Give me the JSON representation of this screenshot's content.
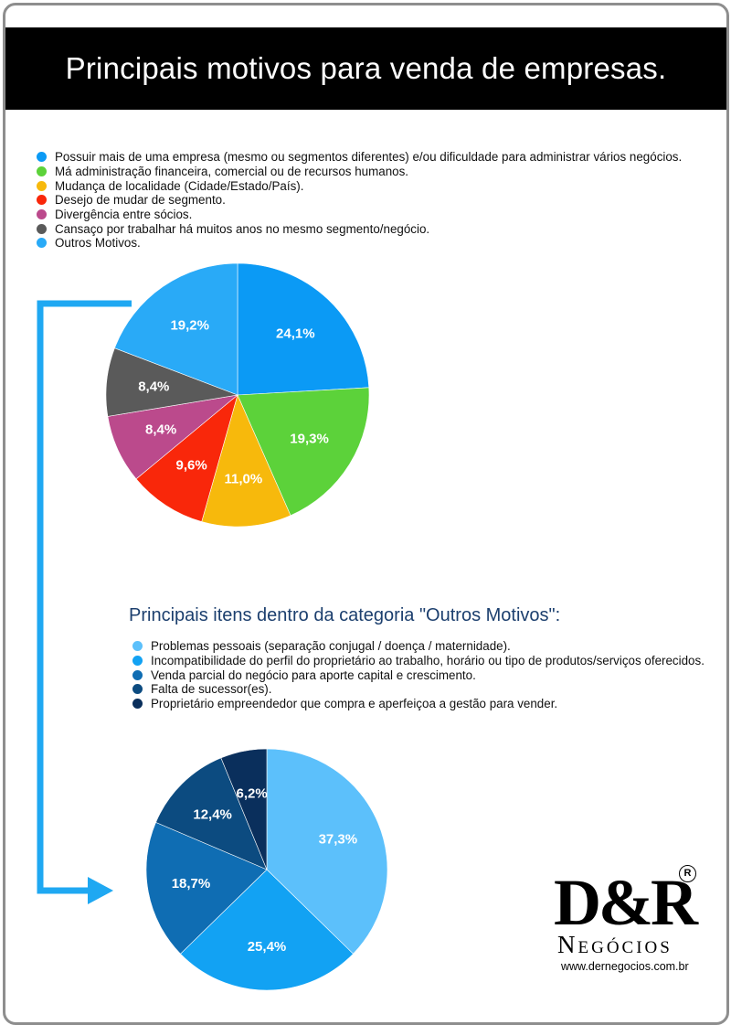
{
  "header": {
    "title": "Principais motivos para venda de empresas."
  },
  "chart_data": [
    {
      "type": "pie",
      "title": "",
      "categories": [
        "Possuir mais de uma empresa (mesmo ou segmentos diferentes) e/ou dificuldade para administrar vários negócios.",
        "Má administração financeira, comercial ou de recursos humanos.",
        "Mudança de localidade (Cidade/Estado/País).",
        "Desejo de mudar de segmento.",
        "Divergência entre sócios.",
        "Cansaço por trabalhar há muitos anos no mesmo segmento/negócio.",
        "Outros Motivos."
      ],
      "values": [
        24.1,
        19.3,
        11.0,
        9.6,
        8.4,
        8.4,
        19.2
      ],
      "labels": [
        "24,1%",
        "19,3%",
        "11,0%",
        "9,6%",
        "8,4%",
        "8,4%",
        "19,2%"
      ],
      "colors": [
        "#0b9af5",
        "#5cd23a",
        "#f7b90c",
        "#f9270a",
        "#bb4a8c",
        "#5a5a5a",
        "#29aaf7"
      ],
      "legend": "top-left"
    },
    {
      "type": "pie",
      "title": "Principais itens dentro da categoria \"Outros Motivos\":",
      "categories": [
        "Problemas pessoais (separação conjugal / doença / maternidade).",
        "Incompatibilidade do perfil do proprietário ao trabalho, horário ou tipo de produtos/serviços oferecidos.",
        "Venda parcial do negócio para aporte capital e crescimento.",
        "Falta de sucessor(es).",
        "Proprietário empreendedor que compra e aperfeiçoa a gestão para vender."
      ],
      "values": [
        37.3,
        25.4,
        18.7,
        12.4,
        6.2
      ],
      "labels": [
        "37,3%",
        "25,4%",
        "18,7%",
        "12,4%",
        "6,2%"
      ],
      "colors": [
        "#5cc0fb",
        "#12a2f3",
        "#0f6db3",
        "#0c4b80",
        "#0a2f5c"
      ],
      "legend": "top-left"
    }
  ],
  "connector_color": "#1fa8f2",
  "logo": {
    "mark": "D&R",
    "registered": "R",
    "subtitle": "Negócios",
    "url": "www.dernegocios.com.br"
  }
}
